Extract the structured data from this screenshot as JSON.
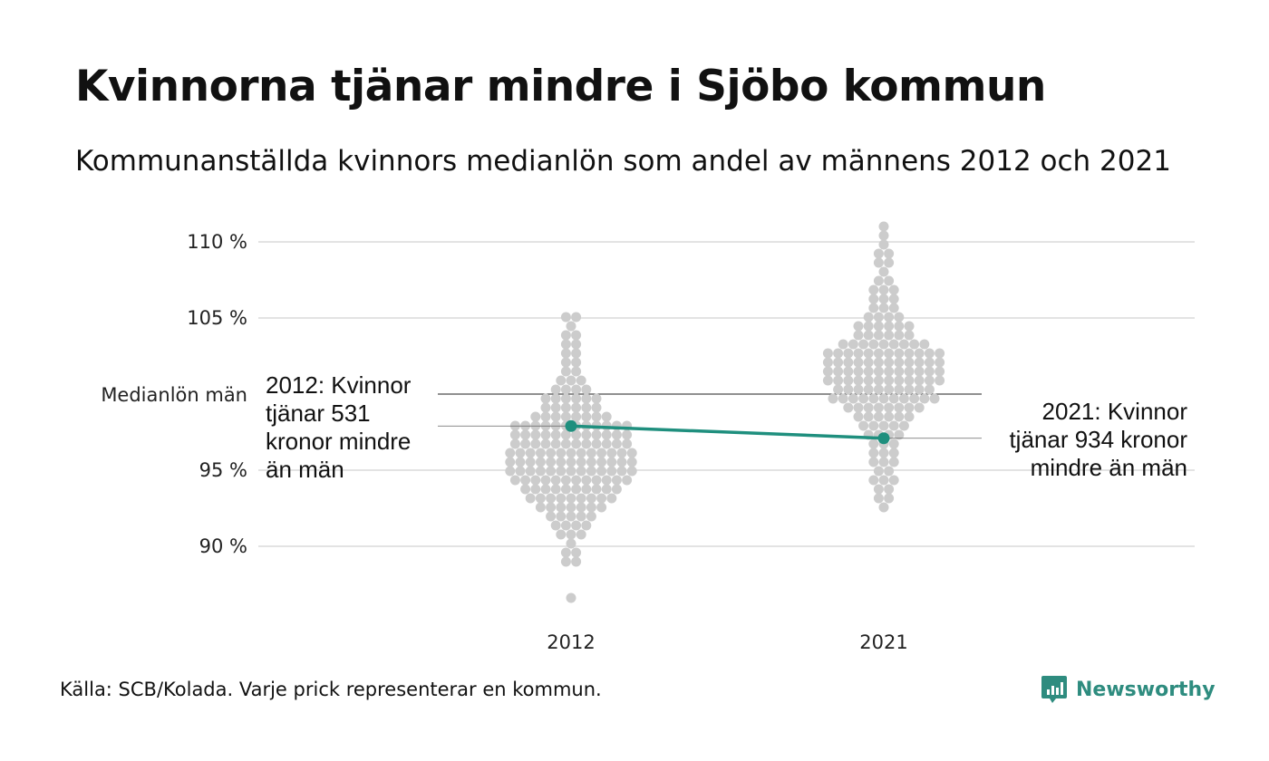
{
  "title": "Kvinnorna tjänar mindre i Sjöbo kommun",
  "subtitle": "Kommunanställda kvinnors medianlön som andel av männens 2012 och 2021",
  "source": "Källa: SCB/Kolada. Varje prick representerar en kommun.",
  "brand": {
    "name": "Newsworthy",
    "icon": "newsworthy-logo-icon",
    "color": "#2e8c7f"
  },
  "colors": {
    "dots": "#cccccc",
    "highlight": "#1f8f7e",
    "grid": "#e3e3e3",
    "reference": "#222222"
  },
  "chart_data": {
    "type": "scatter",
    "title": "Kvinnorna tjänar mindre i Sjöbo kommun",
    "subtitle": "Kommunanställda kvinnors medianlön som andel av männens 2012 och 2021",
    "xlabel": "",
    "ylabel": "",
    "categories": [
      "2012",
      "2021"
    ],
    "ylim": [
      85.5,
      111.5
    ],
    "yticks": [
      {
        "value": 90,
        "label": "90 %"
      },
      {
        "value": 95,
        "label": "95 %"
      },
      {
        "value": 105,
        "label": "105 %"
      },
      {
        "value": 110,
        "label": "110 %"
      }
    ],
    "reference_line": {
      "value": 100,
      "label": "Medianlön män"
    },
    "grid": true,
    "beeswarm": [
      {
        "category": "2012",
        "values": [
          86.4,
          89.0,
          89.2,
          89.5,
          89.8,
          90.3,
          90.6,
          90.8,
          91.0,
          91.2,
          91.3,
          91.5,
          91.6,
          91.8,
          91.9,
          92.0,
          92.1,
          92.2,
          92.3,
          92.4,
          92.5,
          92.6,
          92.6,
          92.7,
          92.8,
          92.9,
          93.0,
          93.0,
          93.1,
          93.2,
          93.2,
          93.3,
          93.4,
          93.4,
          93.5,
          93.6,
          93.6,
          93.7,
          93.7,
          93.8,
          93.9,
          93.9,
          94.0,
          94.0,
          94.1,
          94.1,
          94.2,
          94.2,
          94.3,
          94.3,
          94.4,
          94.4,
          94.5,
          94.5,
          94.6,
          94.6,
          94.7,
          94.7,
          94.8,
          94.8,
          94.9,
          94.9,
          95.0,
          95.0,
          95.0,
          95.1,
          95.1,
          95.2,
          95.2,
          95.3,
          95.3,
          95.4,
          95.4,
          95.5,
          95.5,
          95.5,
          95.6,
          95.6,
          95.7,
          95.7,
          95.8,
          95.8,
          95.9,
          95.9,
          96.0,
          96.0,
          96.0,
          96.1,
          96.1,
          96.2,
          96.2,
          96.3,
          96.3,
          96.4,
          96.4,
          96.5,
          96.5,
          96.6,
          96.6,
          96.7,
          96.7,
          96.8,
          96.8,
          96.9,
          96.9,
          97.0,
          97.0,
          97.1,
          97.1,
          97.2,
          97.2,
          97.3,
          97.3,
          97.4,
          97.4,
          97.5,
          97.5,
          97.6,
          97.6,
          97.7,
          97.7,
          97.8,
          97.8,
          97.9,
          97.9,
          98.0,
          98.0,
          98.1,
          98.1,
          98.2,
          98.2,
          98.3,
          98.4,
          98.4,
          98.5,
          98.5,
          98.6,
          98.7,
          98.8,
          98.9,
          99.0,
          99.1,
          99.2,
          99.3,
          99.4,
          99.5,
          99.6,
          99.7,
          99.8,
          99.9,
          100.0,
          100.1,
          100.2,
          100.3,
          100.5,
          100.7,
          100.9,
          101.1,
          101.3,
          101.5,
          101.8,
          102.1,
          102.4,
          102.7,
          103.0,
          103.3,
          103.6,
          104.0,
          104.4,
          104.9,
          105.2
        ],
        "highlight": {
          "name": "Sjöbo",
          "value": 97.9
        },
        "annotation": [
          "2012: Kvinnor",
          "tjänar 531",
          "kronor mindre",
          "än män"
        ]
      },
      {
        "category": "2021",
        "values": [
          92.5,
          92.9,
          93.3,
          93.5,
          93.8,
          94.1,
          94.4,
          94.6,
          94.9,
          95.1,
          95.3,
          95.5,
          95.8,
          96.0,
          96.2,
          96.4,
          96.6,
          96.8,
          97.0,
          97.1,
          97.3,
          97.4,
          97.6,
          97.7,
          97.9,
          98.0,
          98.1,
          98.2,
          98.3,
          98.4,
          98.5,
          98.6,
          98.7,
          98.8,
          98.9,
          99.0,
          99.0,
          99.1,
          99.2,
          99.3,
          99.3,
          99.4,
          99.5,
          99.5,
          99.6,
          99.7,
          99.7,
          99.8,
          99.8,
          99.9,
          99.9,
          100.0,
          100.0,
          100.1,
          100.1,
          100.2,
          100.2,
          100.3,
          100.3,
          100.4,
          100.4,
          100.5,
          100.5,
          100.6,
          100.6,
          100.7,
          100.7,
          100.8,
          100.8,
          100.9,
          100.9,
          101.0,
          101.0,
          101.1,
          101.1,
          101.2,
          101.2,
          101.3,
          101.3,
          101.4,
          101.4,
          101.5,
          101.5,
          101.6,
          101.6,
          101.7,
          101.7,
          101.8,
          101.8,
          101.9,
          101.9,
          102.0,
          102.0,
          102.1,
          102.1,
          102.2,
          102.2,
          102.3,
          102.3,
          102.4,
          102.4,
          102.5,
          102.5,
          102.6,
          102.6,
          102.7,
          102.7,
          102.8,
          102.8,
          102.9,
          102.9,
          103.0,
          103.0,
          103.1,
          103.2,
          103.2,
          103.3,
          103.4,
          103.4,
          103.5,
          103.6,
          103.7,
          103.8,
          103.9,
          104.0,
          104.1,
          104.2,
          104.3,
          104.4,
          104.5,
          104.6,
          104.7,
          104.8,
          104.9,
          105.0,
          105.2,
          105.4,
          105.6,
          105.8,
          106.0,
          106.2,
          106.4,
          106.6,
          106.8,
          107.1,
          107.4,
          107.7,
          108.0,
          108.4,
          108.7,
          109.2,
          109.5,
          110.1,
          110.4,
          111.1
        ],
        "highlight": {
          "name": "Sjöbo",
          "value": 97.1
        },
        "annotation": [
          "2021: Kvinnor",
          "tjänar 934 kronor",
          "mindre än män"
        ]
      }
    ]
  }
}
